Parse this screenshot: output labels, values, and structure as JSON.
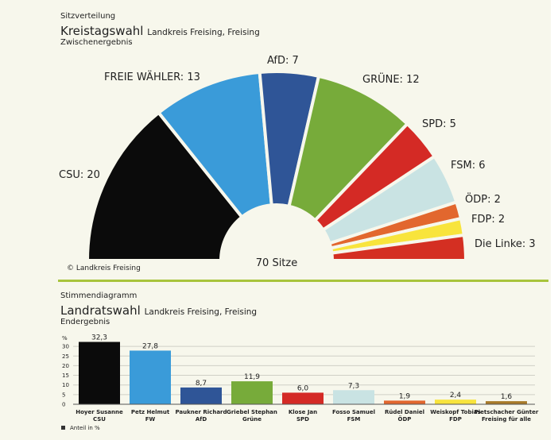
{
  "top": {
    "kicker": "Sitzverteilung",
    "title": "Kreistagswahl",
    "subtitle": "Landkreis Freising, Freising",
    "status": "Zwischenergebnis",
    "credit": "© Landkreis Freising",
    "total": "70 Sitze"
  },
  "bottom": {
    "kicker": "Stimmendiagramm",
    "title": "Landratswahl",
    "subtitle": "Landkreis Freising, Freising",
    "status": "Endergebnis",
    "legend": "Anteil in %"
  },
  "chart_data": [
    {
      "type": "parliament",
      "title": "Kreistagswahl",
      "total_seats": 70,
      "parties": [
        {
          "name": "CSU",
          "seats": 20,
          "label": "CSU: 20",
          "color": "#0b0b0b"
        },
        {
          "name": "FREIE WÄHLER",
          "seats": 13,
          "label": "FREIE WÄHLER: 13",
          "color": "#3a9bd9"
        },
        {
          "name": "AfD",
          "seats": 7,
          "label": "AfD: 7",
          "color": "#2f5597"
        },
        {
          "name": "GRÜNE",
          "seats": 12,
          "label": "GRÜNE: 12",
          "color": "#77ab3a"
        },
        {
          "name": "SPD",
          "seats": 5,
          "label": "SPD: 5",
          "color": "#d42a25"
        },
        {
          "name": "FSM",
          "seats": 6,
          "label": "FSM: 6",
          "color": "#c9e3e3"
        },
        {
          "name": "ÖDP",
          "seats": 2,
          "label": "ÖDP: 2",
          "color": "#e2672e"
        },
        {
          "name": "FDP",
          "seats": 2,
          "label": "FDP: 2",
          "color": "#f8e43c"
        },
        {
          "name": "Die Linke",
          "seats": 3,
          "label": "Die Linke: 3",
          "color": "#d42f22"
        }
      ]
    },
    {
      "type": "bar",
      "title": "Landratswahl",
      "ylabel": "%",
      "ylim": [
        0,
        33
      ],
      "yticks": [
        0,
        5,
        10,
        15,
        20,
        25,
        30
      ],
      "categories": [
        {
          "name": "Hoyer Susanne",
          "party": "CSU",
          "value": 32.3,
          "label": "32,3",
          "color": "#0b0b0b"
        },
        {
          "name": "Petz Helmut",
          "party": "FW",
          "value": 27.8,
          "label": "27,8",
          "color": "#3a9bd9"
        },
        {
          "name": "Paukner Richard",
          "party": "AfD",
          "value": 8.7,
          "label": "8,7",
          "color": "#2f5597"
        },
        {
          "name": "Griebel Stephan",
          "party": "Grüne",
          "value": 11.9,
          "label": "11,9",
          "color": "#77ab3a"
        },
        {
          "name": "Klose Jan",
          "party": "SPD",
          "value": 6.0,
          "label": "6,0",
          "color": "#d42a25"
        },
        {
          "name": "Fosso Samuel",
          "party": "FSM",
          "value": 7.3,
          "label": "7,3",
          "color": "#c9e3e3"
        },
        {
          "name": "Rüdel Daniel",
          "party": "ÖDP",
          "value": 1.9,
          "label": "1,9",
          "color": "#e2672e"
        },
        {
          "name": "Weiskopf Tobias",
          "party": "FDP",
          "value": 2.4,
          "label": "2,4",
          "color": "#f8e43c"
        },
        {
          "name": "Pietschacher Günter",
          "party": "Freising für alle",
          "value": 1.6,
          "label": "1,6",
          "color": "#a87a2a"
        }
      ]
    }
  ]
}
